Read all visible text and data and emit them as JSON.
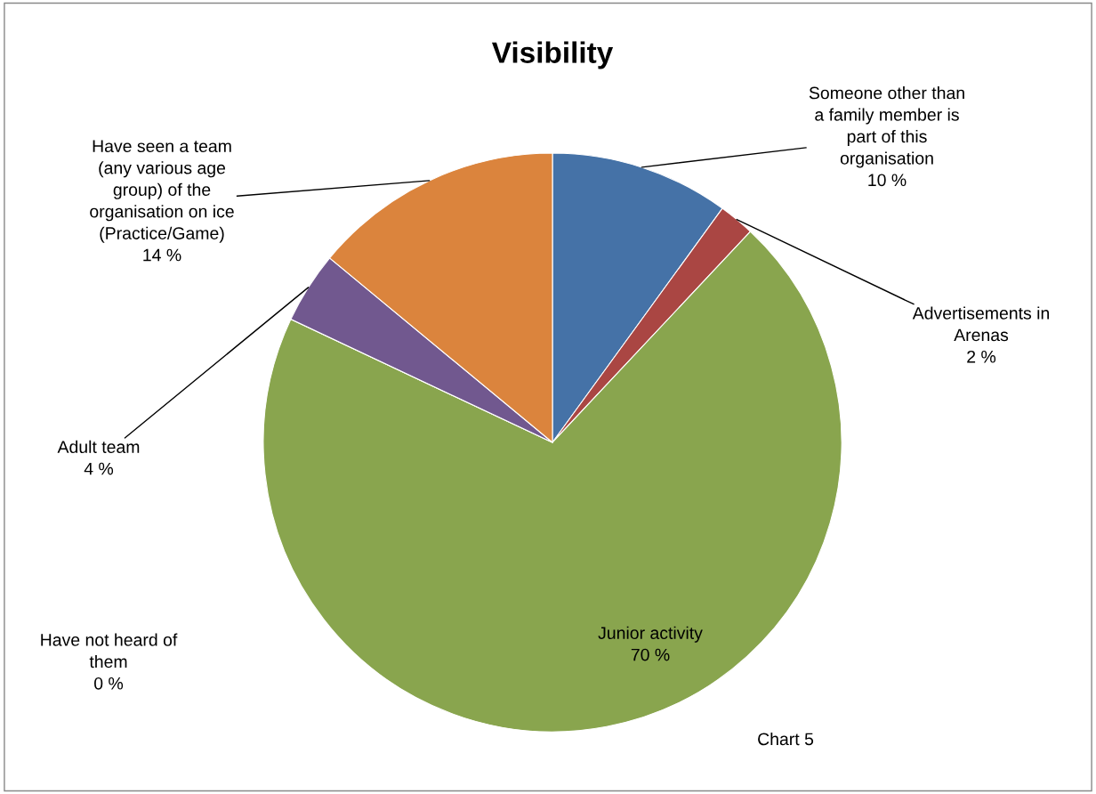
{
  "chart_data": {
    "type": "pie",
    "title": "Visibility",
    "categories": [
      "Someone other than\na family member is\npart of this\norganisation",
      "Advertisements in\nArenas",
      "Junior activity",
      "Have not heard of\nthem",
      "Adult team",
      "Have seen a team\n(any various age\ngroup) of the\norganisation on ice\n(Practice/Game)"
    ],
    "values": [
      10,
      2,
      70,
      0,
      4,
      14
    ],
    "colors": [
      "#4572a7",
      "#aa4643",
      "#89a54e",
      "#4198af",
      "#71588f",
      "#db843d"
    ],
    "value_labels": [
      "10 %",
      "2 %",
      "70 %",
      "0 %",
      "4 %",
      "14 %"
    ],
    "legend": false,
    "annotations": [
      "Chart 5"
    ]
  }
}
